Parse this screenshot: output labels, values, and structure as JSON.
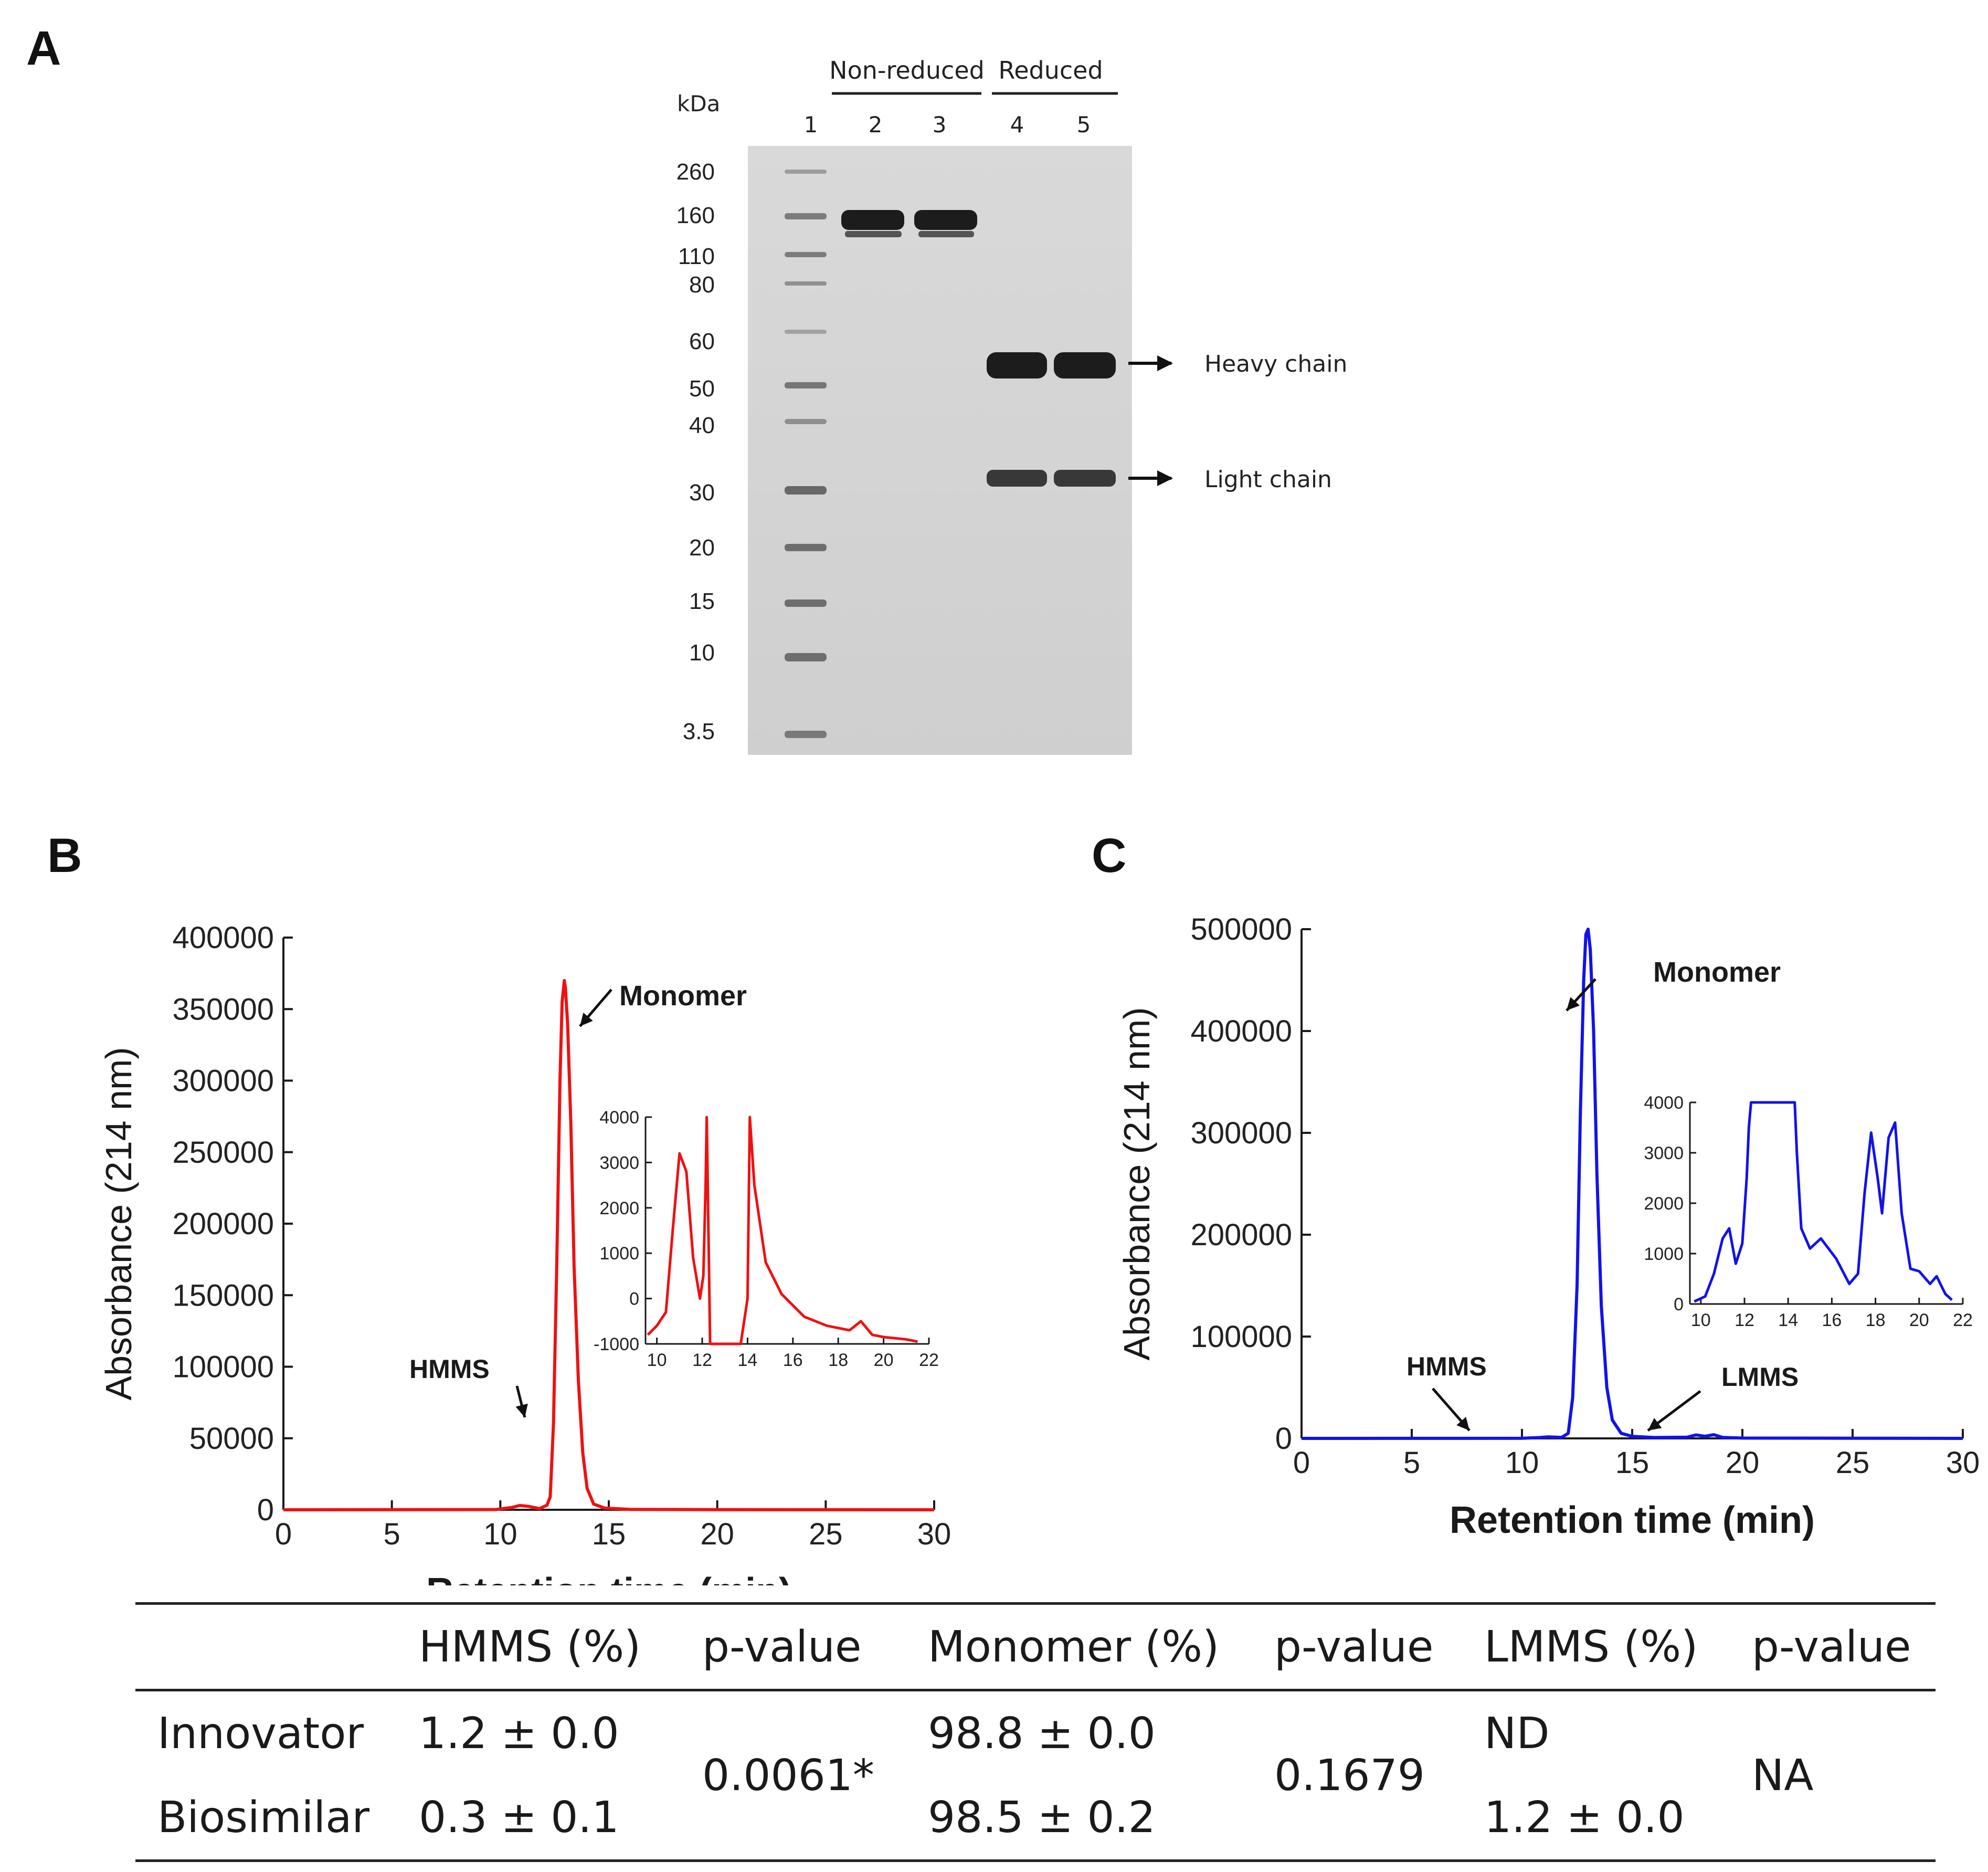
{
  "panels": {
    "a": "A",
    "b": "B",
    "c": "C"
  },
  "gel": {
    "unit_label": "kDa",
    "lane_numbers": [
      "1",
      "2",
      "3",
      "4",
      "5"
    ],
    "group_labels": [
      "Non-reduced",
      "Reduced"
    ],
    "ladder": [
      "260",
      "160",
      "110",
      "80",
      "60",
      "50",
      "40",
      "30",
      "20",
      "15",
      "10",
      "3.5"
    ],
    "band_labels": [
      "Heavy chain",
      "Light chain"
    ]
  },
  "colors": {
    "red_trace": "#ee1111",
    "blue_trace": "#1111ee",
    "axis": "#1a1a1a"
  },
  "chart_data": [
    {
      "type": "line",
      "panel": "B",
      "ylabel": "Absorbance (214 nm)",
      "xlabel": "Retention time (min)",
      "xlim": [
        0,
        30
      ],
      "ylim": [
        0,
        400000
      ],
      "x_ticks": [
        0,
        5,
        10,
        15,
        20,
        25,
        30
      ],
      "y_ticks": [
        0,
        50000,
        100000,
        150000,
        200000,
        250000,
        300000,
        350000,
        400000
      ],
      "annotations": [
        "Monomer",
        "HMMS"
      ],
      "series": [
        {
          "name": "Innovator",
          "color": "#ee1111",
          "x": [
            0,
            9.8,
            10.5,
            10.9,
            11.3,
            11.8,
            12.15,
            12.3,
            12.45,
            12.6,
            12.75,
            12.85,
            12.95,
            13.0,
            13.1,
            13.25,
            13.4,
            13.6,
            13.8,
            14.0,
            14.3,
            14.8,
            16,
            20,
            30
          ],
          "y": [
            0,
            200,
            1500,
            3000,
            2400,
            800,
            3200,
            9000,
            60000,
            170000,
            300000,
            355000,
            370000,
            365000,
            340000,
            270000,
            170000,
            90000,
            40000,
            15000,
            4000,
            1200,
            300,
            100,
            0
          ]
        }
      ],
      "inset": {
        "xlim": [
          9.5,
          22
        ],
        "ylim": [
          -1000,
          4000
        ],
        "x_ticks": [
          10,
          12,
          14,
          16,
          18,
          20,
          22
        ],
        "y_ticks": [
          -1000,
          0,
          1000,
          2000,
          3000,
          4000
        ],
        "x": [
          9.6,
          10.0,
          10.4,
          10.7,
          11.0,
          11.3,
          11.6,
          11.9,
          12.05,
          12.15,
          12.2,
          12.35,
          12.7,
          13.2,
          13.7,
          14.0,
          14.1,
          14.3,
          14.8,
          15.5,
          16.5,
          17.5,
          18.5,
          19.0,
          19.5,
          20.0,
          21.0,
          21.5
        ],
        "y": [
          -800,
          -600,
          -300,
          1500,
          3200,
          2800,
          900,
          0,
          500,
          2500,
          4000,
          -1000,
          -1000,
          -1000,
          -1000,
          0,
          4000,
          2500,
          800,
          100,
          -400,
          -600,
          -700,
          -500,
          -800,
          -850,
          -900,
          -950
        ]
      }
    },
    {
      "type": "line",
      "panel": "C",
      "ylabel": "Absorbance (214 nm)",
      "xlabel": "Retention time (min)",
      "xlim": [
        0,
        30
      ],
      "ylim": [
        0,
        500000
      ],
      "x_ticks": [
        0,
        5,
        10,
        15,
        20,
        25,
        30
      ],
      "y_ticks": [
        0,
        100000,
        200000,
        300000,
        400000,
        500000
      ],
      "annotations": [
        "Monomer",
        "HMMS",
        "LMMS"
      ],
      "series": [
        {
          "name": "Biosimilar",
          "color": "#1111ee",
          "x": [
            0,
            10,
            10.8,
            11.2,
            11.8,
            12.1,
            12.3,
            12.5,
            12.65,
            12.8,
            12.9,
            13.0,
            13.1,
            13.25,
            13.4,
            13.6,
            13.85,
            14.1,
            14.5,
            15,
            16,
            17.5,
            17.9,
            18.3,
            18.7,
            19.1,
            20,
            30
          ],
          "y": [
            0,
            100,
            800,
            1500,
            1000,
            5000,
            40000,
            150000,
            320000,
            450000,
            495000,
            500000,
            480000,
            400000,
            260000,
            130000,
            50000,
            18000,
            5000,
            2000,
            800,
            1200,
            3400,
            2000,
            3600,
            1000,
            300,
            0
          ]
        }
      ],
      "inset": {
        "xlim": [
          9.5,
          22
        ],
        "ylim": [
          0,
          4000
        ],
        "x_ticks": [
          10,
          12,
          14,
          16,
          18,
          20,
          22
        ],
        "y_ticks": [
          0,
          1000,
          2000,
          3000,
          4000
        ],
        "x": [
          9.7,
          10.2,
          10.6,
          11.0,
          11.3,
          11.6,
          11.9,
          12.1,
          12.2,
          12.3,
          14.3,
          14.4,
          14.6,
          15.0,
          15.5,
          16.2,
          16.8,
          17.2,
          17.5,
          17.8,
          18.1,
          18.3,
          18.6,
          18.9,
          19.2,
          19.6,
          20.0,
          20.5,
          20.8,
          21.2,
          21.5
        ],
        "y": [
          50,
          150,
          600,
          1300,
          1500,
          800,
          1200,
          2500,
          3500,
          4000,
          4000,
          3000,
          1500,
          1100,
          1300,
          900,
          400,
          600,
          2200,
          3400,
          2500,
          1800,
          3300,
          3600,
          1800,
          700,
          650,
          400,
          550,
          200,
          80
        ]
      }
    }
  ],
  "table": {
    "headers": [
      "",
      "HMMS (%)",
      "p-value",
      "Monomer (%)",
      "p-value",
      "LMMS (%)",
      "p-value"
    ],
    "rows": [
      {
        "label": "Innovator",
        "hmms": "1.2 ± 0.0",
        "monomer": "98.8 ± 0.0",
        "lmms": "ND"
      },
      {
        "label": "Biosimilar",
        "hmms": "0.3 ± 0.1",
        "monomer": "98.5 ± 0.2",
        "lmms": "1.2 ± 0.0"
      }
    ],
    "p_values": {
      "hmms": "0.0061*",
      "monomer": "0.1679",
      "lmms": "NA"
    }
  }
}
